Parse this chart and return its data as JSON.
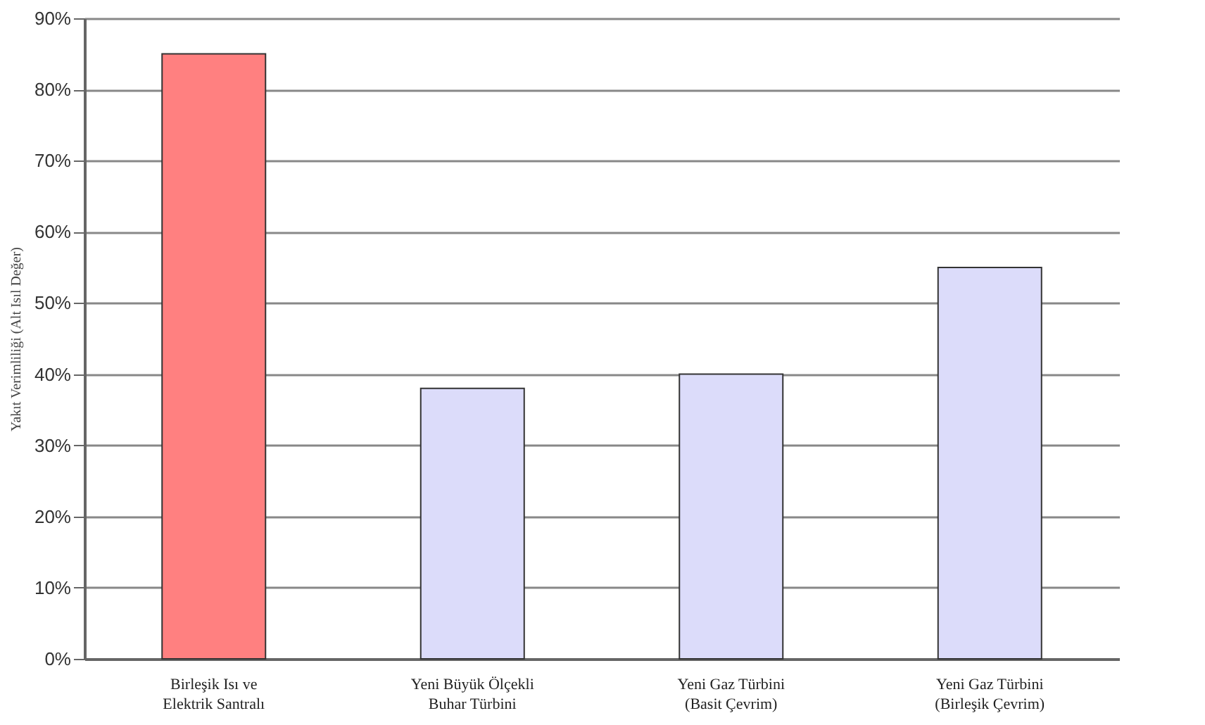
{
  "chart_data": {
    "type": "bar",
    "ylabel": "Yakıt Verimliliği (Alt Isıl Değer)",
    "categories": [
      "Birleşik Isı ve Elektrik Santralı",
      "Yeni Büyük Ölçekli Buhar Türbini",
      "Yeni Gaz Türbini (Basit Çevrim)",
      "Yeni Gaz Türbini (Birleşik Çevrim)"
    ],
    "values": [
      85,
      38,
      40,
      55
    ],
    "colors": [
      "#ff8080",
      "#dcdcfa",
      "#dcdcfa",
      "#dcdcfa"
    ],
    "ylim": [
      0,
      90
    ],
    "yticks": [
      {
        "value": 0,
        "label": "0%"
      },
      {
        "value": 10,
        "label": "10%"
      },
      {
        "value": 20,
        "label": "20%"
      },
      {
        "value": 30,
        "label": "30%"
      },
      {
        "value": 40,
        "label": "40%"
      },
      {
        "value": 50,
        "label": "50%"
      },
      {
        "value": 60,
        "label": "60%"
      },
      {
        "value": 70,
        "label": "70%"
      },
      {
        "value": 80,
        "label": "80%"
      },
      {
        "value": 90,
        "label": "90%"
      }
    ],
    "grid": "y"
  }
}
